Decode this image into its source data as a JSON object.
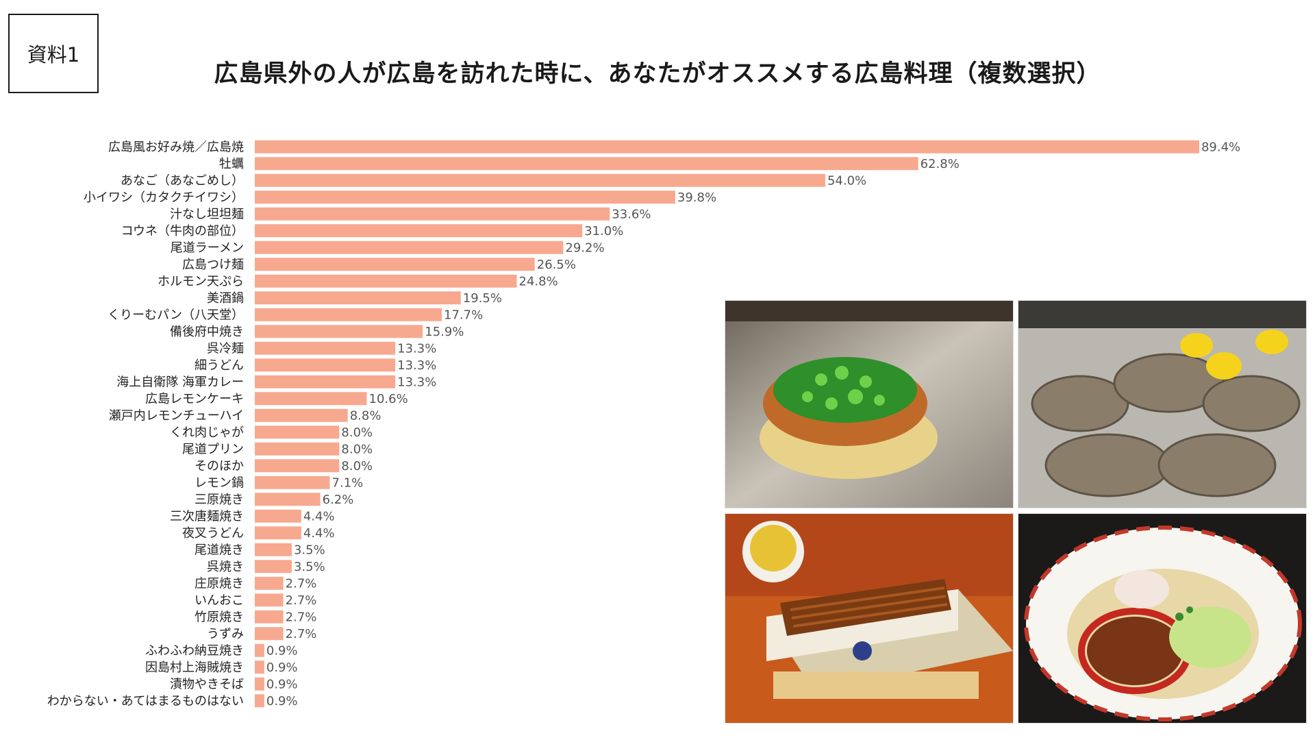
{
  "document_label": "資料1",
  "title": "広島県外の人が広島を訪れた時に、あなたがオススメする広島料理（複数選択）",
  "colors": {
    "bar": "#f7a98f",
    "label_text": "#222222",
    "value_text": "#555555"
  },
  "photos": [
    {
      "name": "okonomiyaki-photo"
    },
    {
      "name": "oyster-photo"
    },
    {
      "name": "anago-meshi-photo"
    },
    {
      "name": "shiru-nashi-tantanmen-photo"
    }
  ],
  "chart_data": {
    "type": "bar",
    "orientation": "horizontal",
    "value_suffix": "%",
    "categories": [
      "広島風お好み焼／広島焼",
      "牡蠣",
      "あなご（あなごめし）",
      "小イワシ（カタクチイワシ）",
      "汁なし坦坦麺",
      "コウネ（牛肉の部位）",
      "尾道ラーメン",
      "広島つけ麺",
      "ホルモン天ぷら",
      "美酒鍋",
      "くりーむパン（八天堂）",
      "備後府中焼き",
      "呉冷麺",
      "細うどん",
      "海上自衛隊 海軍カレー",
      "広島レモンケーキ",
      "瀬戸内レモンチューハイ",
      "くれ肉じゃが",
      "尾道プリン",
      "そのほか",
      "レモン鍋",
      "三原焼き",
      "三次唐麺焼き",
      "夜叉うどん",
      "尾道焼き",
      "呉焼き",
      "庄原焼き",
      "いんおこ",
      "竹原焼き",
      "うずみ",
      "ふわふわ納豆焼き",
      "因島村上海賊焼き",
      "漬物やきそば",
      "わからない・あてはまるものはない"
    ],
    "values": [
      89.4,
      62.8,
      54.0,
      39.8,
      33.6,
      31.0,
      29.2,
      26.5,
      24.8,
      19.5,
      17.7,
      15.9,
      13.3,
      13.3,
      13.3,
      10.6,
      8.8,
      8.0,
      8.0,
      8.0,
      7.1,
      6.2,
      4.4,
      4.4,
      3.5,
      3.5,
      2.7,
      2.7,
      2.7,
      2.7,
      0.9,
      0.9,
      0.9,
      0.9
    ],
    "value_labels": [
      "89.4%",
      "62.8%",
      "54.0%",
      "39.8%",
      "33.6%",
      "31.0%",
      "29.2%",
      "26.5%",
      "24.8%",
      "19.5%",
      "17.7%",
      "15.9%",
      "13.3%",
      "13.3%",
      "13.3%",
      "10.6%",
      "8.8%",
      "8.0%",
      "8.0%",
      "8.0%",
      "7.1%",
      "6.2%",
      "4.4%",
      "4.4%",
      "3.5%",
      "3.5%",
      "2.7%",
      "2.7%",
      "2.7%",
      "2.7%",
      "0.9%",
      "0.9%",
      "0.9%",
      "0.9%"
    ],
    "xlim": [
      0,
      100
    ],
    "grid": false,
    "legend": false
  }
}
